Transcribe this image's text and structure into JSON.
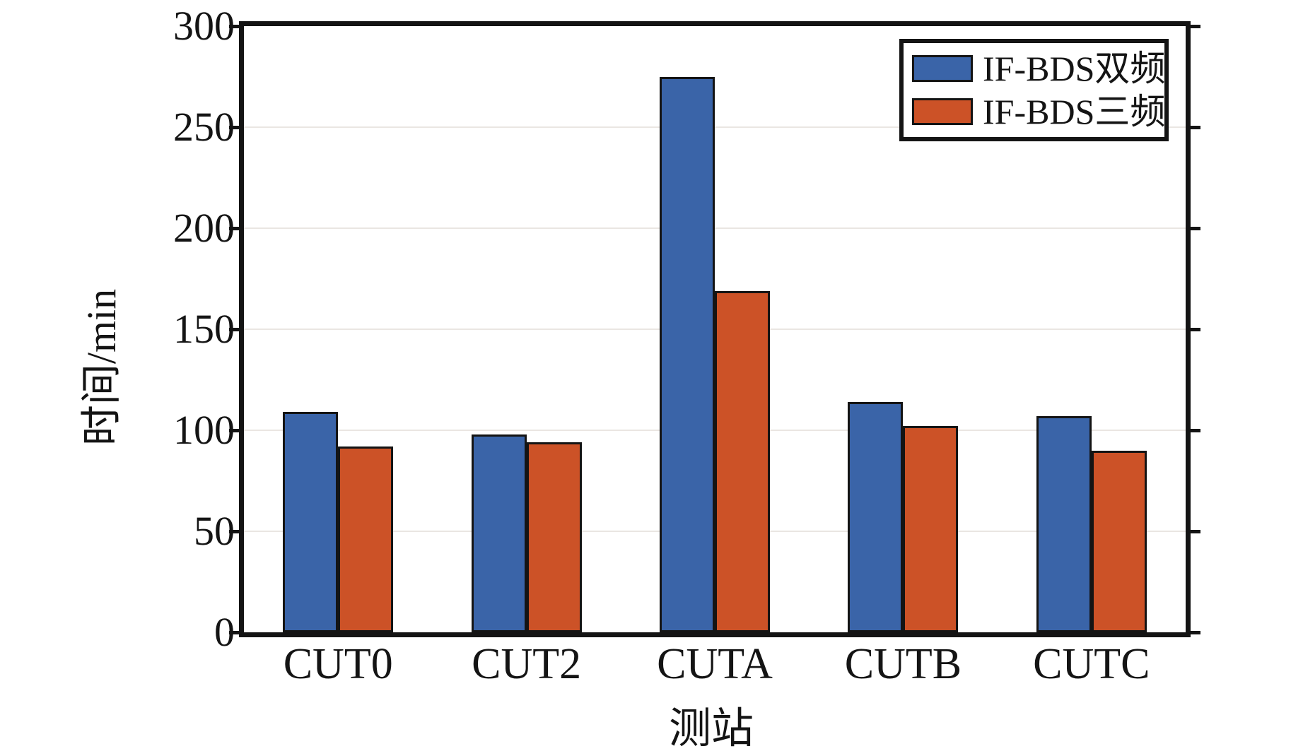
{
  "chart_data": {
    "type": "bar",
    "title": "",
    "categories": [
      "CUT0",
      "CUT2",
      "CUTA",
      "CUTB",
      "CUTC"
    ],
    "series": [
      {
        "name": "IF-BDS双频",
        "color": "#3a64a8",
        "values": [
          109,
          98,
          275,
          114,
          107
        ]
      },
      {
        "name": "IF-BDS三频",
        "color": "#cc5227",
        "values": [
          92,
          94,
          169,
          102,
          90
        ]
      }
    ],
    "xlabel": "测站",
    "ylabel": "时间/min",
    "ylim": [
      0,
      300
    ],
    "yticks": [
      0,
      50,
      100,
      150,
      200,
      250,
      300
    ],
    "ytick_labels": [
      "0",
      "50",
      "100",
      "150",
      "200",
      "250",
      "300"
    ],
    "grid": "horizontal",
    "gridline_color": "#eae6e2",
    "axis_color": "#141414",
    "bar_edge_color": "#141414",
    "background_color": "#ffffff",
    "legend_position": "top-right"
  }
}
